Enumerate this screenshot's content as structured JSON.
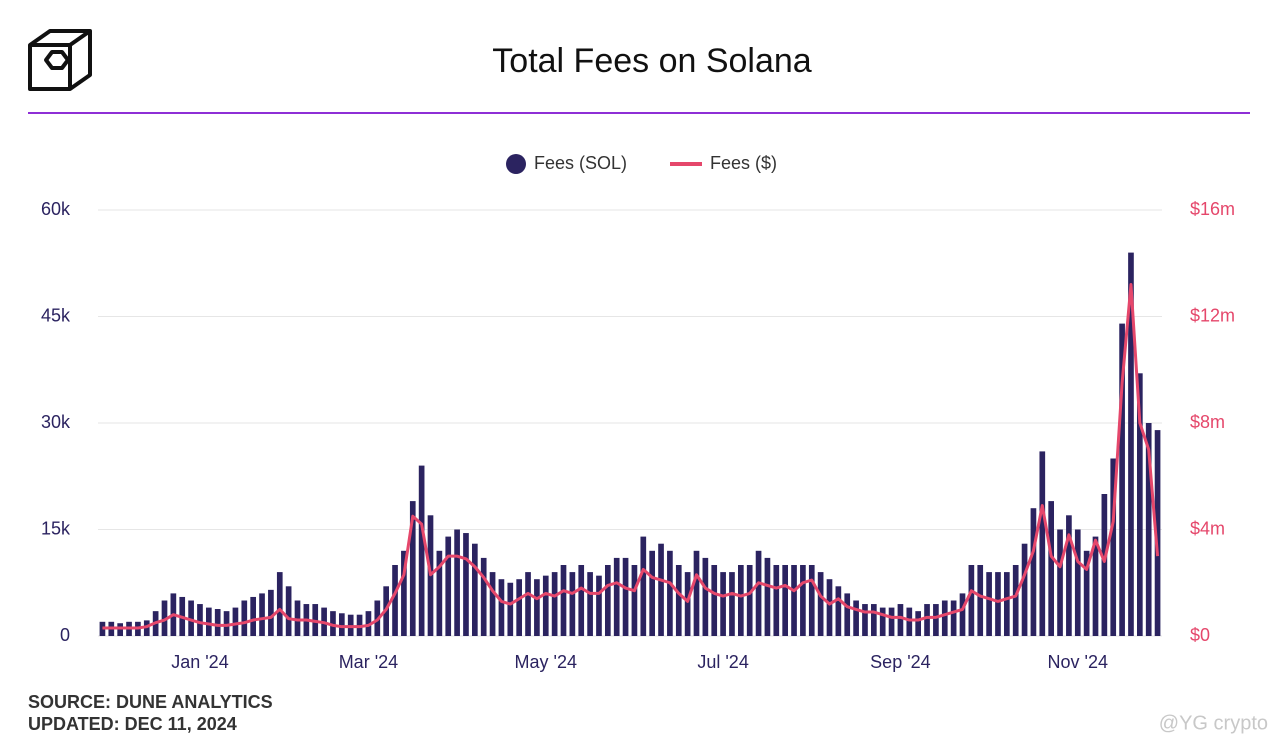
{
  "chart_data": {
    "type": "bar",
    "title": "Total Fees on Solana",
    "categories": [
      null,
      null,
      null,
      null,
      null,
      null,
      null,
      null,
      null,
      null,
      null,
      "Jan '24",
      null,
      null,
      null,
      null,
      null,
      null,
      null,
      null,
      null,
      null,
      null,
      null,
      null,
      null,
      null,
      null,
      null,
      null,
      "Mar '24",
      null,
      null,
      null,
      null,
      null,
      null,
      null,
      null,
      null,
      null,
      null,
      null,
      null,
      null,
      null,
      null,
      null,
      null,
      null,
      "May '24",
      null,
      null,
      null,
      null,
      null,
      null,
      null,
      null,
      null,
      null,
      null,
      null,
      null,
      null,
      null,
      null,
      null,
      null,
      null,
      "Jul '24",
      null,
      null,
      null,
      null,
      null,
      null,
      null,
      null,
      null,
      null,
      null,
      null,
      null,
      null,
      null,
      null,
      null,
      null,
      null,
      "Sep '24",
      null,
      null,
      null,
      null,
      null,
      null,
      null,
      null,
      null,
      null,
      null,
      null,
      null,
      null,
      null,
      null,
      null,
      null,
      null,
      "Nov '24",
      null,
      null,
      null,
      null,
      null,
      null,
      null,
      null,
      null
    ],
    "series": [
      {
        "name": "Fees (SOL)",
        "type": "bar",
        "color": "#2b2360",
        "values": [
          2000,
          2000,
          1800,
          2000,
          2000,
          2200,
          3500,
          5000,
          6000,
          5500,
          5000,
          4500,
          4000,
          3800,
          3500,
          4000,
          5000,
          5500,
          6000,
          6500,
          9000,
          7000,
          5000,
          4500,
          4500,
          4000,
          3500,
          3200,
          3000,
          3000,
          3500,
          5000,
          7000,
          10000,
          12000,
          19000,
          24000,
          17000,
          12000,
          14000,
          15000,
          14500,
          13000,
          11000,
          9000,
          8000,
          7500,
          8000,
          9000,
          8000,
          8500,
          9000,
          10000,
          9000,
          10000,
          9000,
          8500,
          10000,
          11000,
          11000,
          10000,
          14000,
          12000,
          13000,
          12000,
          10000,
          9000,
          12000,
          11000,
          10000,
          9000,
          9000,
          10000,
          10000,
          12000,
          11000,
          10000,
          10000,
          10000,
          10000,
          10000,
          9000,
          8000,
          7000,
          6000,
          5000,
          4500,
          4500,
          4000,
          4000,
          4500,
          4000,
          3500,
          4500,
          4500,
          5000,
          5000,
          6000,
          10000,
          10000,
          9000,
          9000,
          9000,
          10000,
          13000,
          18000,
          26000,
          19000,
          15000,
          17000,
          15000,
          12000,
          14000,
          20000,
          25000,
          44000,
          54000,
          37000,
          30000,
          29000
        ]
      },
      {
        "name": "Fees ($)",
        "type": "line",
        "axis": "y2",
        "color": "#e5476b",
        "values": [
          300000,
          300000,
          300000,
          300000,
          300000,
          350000,
          500000,
          600000,
          800000,
          700000,
          600000,
          500000,
          450000,
          400000,
          400000,
          450000,
          500000,
          600000,
          650000,
          700000,
          1000000,
          650000,
          600000,
          600000,
          550000,
          500000,
          400000,
          350000,
          350000,
          350000,
          400000,
          600000,
          1000000,
          1600000,
          2300000,
          4500000,
          4200000,
          2300000,
          2600000,
          3000000,
          3000000,
          2900000,
          2600000,
          2200000,
          1700000,
          1300000,
          1200000,
          1400000,
          1600000,
          1400000,
          1600000,
          1500000,
          1700000,
          1600000,
          1800000,
          1600000,
          1600000,
          1900000,
          2000000,
          1800000,
          1700000,
          2500000,
          2200000,
          2100000,
          2000000,
          1600000,
          1300000,
          2300000,
          1800000,
          1600000,
          1500000,
          1600000,
          1500000,
          1600000,
          2000000,
          1900000,
          1800000,
          1900000,
          1700000,
          2000000,
          2100000,
          1500000,
          1200000,
          1400000,
          1100000,
          1000000,
          900000,
          900000,
          800000,
          700000,
          700000,
          600000,
          600000,
          700000,
          700000,
          800000,
          900000,
          1000000,
          1700000,
          1500000,
          1400000,
          1300000,
          1400000,
          1500000,
          2300000,
          3200000,
          4900000,
          3000000,
          2600000,
          3800000,
          2800000,
          2500000,
          3600000,
          2800000,
          4300000,
          9500000,
          13200000,
          8000000,
          7000000,
          3000000
        ]
      }
    ],
    "ylim": [
      0,
      60000
    ],
    "yticks": [
      {
        "value": 0,
        "label": "0"
      },
      {
        "value": 15000,
        "label": "15k"
      },
      {
        "value": 30000,
        "label": "30k"
      },
      {
        "value": 45000,
        "label": "45k"
      },
      {
        "value": 60000,
        "label": "60k"
      }
    ],
    "y2lim": [
      0,
      16000000
    ],
    "y2ticks": [
      {
        "value": 0,
        "label": "$0"
      },
      {
        "value": 4000000,
        "label": "$4m"
      },
      {
        "value": 8000000,
        "label": "$8m"
      },
      {
        "value": 12000000,
        "label": "$12m"
      },
      {
        "value": 16000000,
        "label": "$16m"
      }
    ],
    "grid": true,
    "legend": "top"
  },
  "footer": {
    "source": "SOURCE: DUNE ANALYTICS",
    "updated": "UPDATED: DEC 11, 2024"
  },
  "watermark": "@YG crypto"
}
